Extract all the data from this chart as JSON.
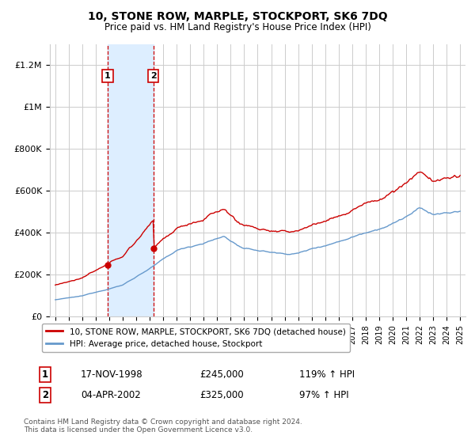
{
  "title": "10, STONE ROW, MARPLE, STOCKPORT, SK6 7DQ",
  "subtitle": "Price paid vs. HM Land Registry's House Price Index (HPI)",
  "ylabel_ticks": [
    "£0",
    "£200K",
    "£400K",
    "£600K",
    "£800K",
    "£1M",
    "£1.2M"
  ],
  "ytick_values": [
    0,
    200000,
    400000,
    600000,
    800000,
    1000000,
    1200000
  ],
  "ylim": [
    0,
    1300000
  ],
  "transaction1": {
    "date_num": 1998.88,
    "price": 245000,
    "label": "1",
    "date_str": "17-NOV-1998",
    "pct": "119%"
  },
  "transaction2": {
    "date_num": 2002.27,
    "price": 325000,
    "label": "2",
    "date_str": "04-APR-2002",
    "pct": "97%"
  },
  "line_red_color": "#cc0000",
  "line_blue_color": "#6699cc",
  "shade_color": "#ddeeff",
  "vline_color": "#cc0000",
  "grid_color": "#cccccc",
  "legend1": "10, STONE ROW, MARPLE, STOCKPORT, SK6 7DQ (detached house)",
  "legend2": "HPI: Average price, detached house, Stockport",
  "footer": "Contains HM Land Registry data © Crown copyright and database right 2024.\nThis data is licensed under the Open Government Licence v3.0.",
  "table_row1": [
    "1",
    "17-NOV-1998",
    "£245,000",
    "119% ↑ HPI"
  ],
  "table_row2": [
    "2",
    "04-APR-2002",
    "£325,000",
    "97% ↑ HPI"
  ]
}
